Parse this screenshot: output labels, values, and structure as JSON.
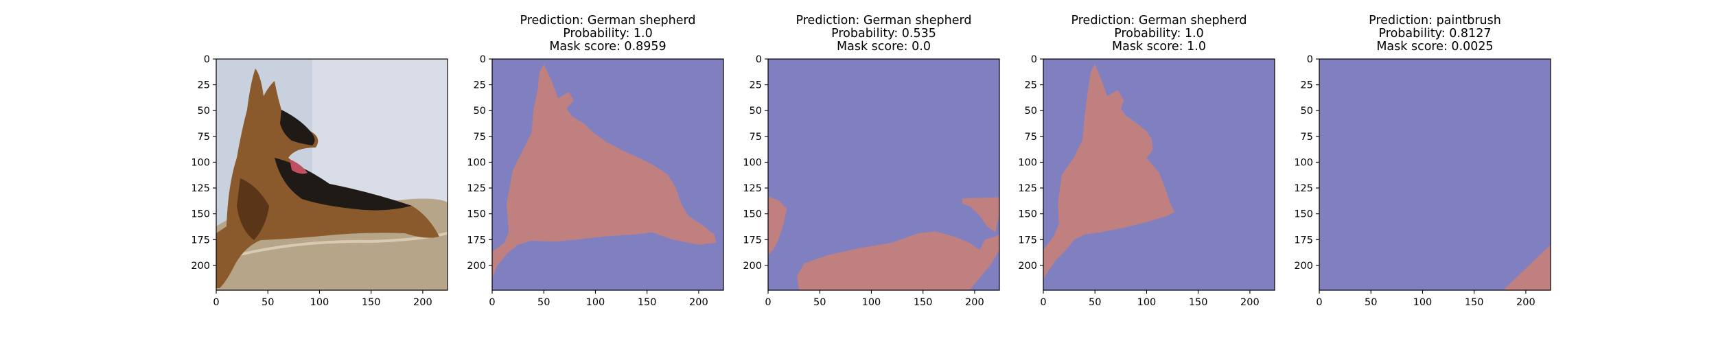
{
  "chart_data": [
    {
      "type": "image",
      "panel": "photo",
      "content": "photograph of a German shepherd dog lying on a cushion",
      "title_lines": [],
      "xlim": [
        0,
        224
      ],
      "ylim": [
        224,
        0
      ],
      "xticks": [
        0,
        50,
        100,
        150,
        200
      ],
      "yticks": [
        0,
        25,
        50,
        75,
        100,
        125,
        150,
        175,
        200
      ]
    },
    {
      "type": "heatmap",
      "panel": "mask",
      "title_lines": [
        "Prediction: German shepherd",
        "Probability: 1.0",
        "Mask score: 0.8959"
      ],
      "prediction": "German shepherd",
      "probability": 1.0,
      "mask_score": 0.8959,
      "xlim": [
        0,
        224
      ],
      "ylim": [
        224,
        0
      ],
      "xticks": [
        0,
        50,
        100,
        150,
        200
      ],
      "yticks": [
        0,
        25,
        50,
        75,
        100,
        125,
        150,
        175,
        200
      ],
      "mask_region": "dog silhouette",
      "mask_polygon": [
        [
          50,
          5
        ],
        [
          57,
          20
        ],
        [
          64,
          38
        ],
        [
          74,
          32
        ],
        [
          79,
          40
        ],
        [
          72,
          48
        ],
        [
          78,
          56
        ],
        [
          88,
          62
        ],
        [
          99,
          72
        ],
        [
          110,
          80
        ],
        [
          125,
          88
        ],
        [
          138,
          94
        ],
        [
          155,
          102
        ],
        [
          170,
          112
        ],
        [
          178,
          125
        ],
        [
          183,
          140
        ],
        [
          190,
          152
        ],
        [
          205,
          162
        ],
        [
          215,
          170
        ],
        [
          217,
          178
        ],
        [
          200,
          180
        ],
        [
          175,
          175
        ],
        [
          155,
          168
        ],
        [
          138,
          170
        ],
        [
          108,
          172
        ],
        [
          82,
          175
        ],
        [
          60,
          177
        ],
        [
          38,
          176
        ],
        [
          25,
          180
        ],
        [
          15,
          188
        ],
        [
          5,
          200
        ],
        [
          0,
          213
        ],
        [
          0,
          187
        ],
        [
          12,
          178
        ],
        [
          16,
          168
        ],
        [
          14,
          140
        ],
        [
          20,
          108
        ],
        [
          30,
          88
        ],
        [
          38,
          72
        ],
        [
          40,
          50
        ],
        [
          44,
          30
        ],
        [
          46,
          12
        ]
      ]
    },
    {
      "type": "heatmap",
      "panel": "mask",
      "title_lines": [
        "Prediction: German shepherd",
        "Probability: 0.535",
        "Mask score: 0.0"
      ],
      "prediction": "German shepherd",
      "probability": 0.535,
      "mask_score": 0.0,
      "xlim": [
        0,
        224
      ],
      "ylim": [
        224,
        0
      ],
      "xticks": [
        0,
        50,
        100,
        150,
        200
      ],
      "yticks": [
        0,
        25,
        50,
        75,
        100,
        125,
        150,
        175,
        200
      ],
      "mask_region": "cushion and border fragments",
      "mask_polygon_left": [
        [
          0,
          133
        ],
        [
          10,
          137
        ],
        [
          18,
          145
        ],
        [
          15,
          160
        ],
        [
          10,
          175
        ],
        [
          5,
          185
        ],
        [
          0,
          190
        ]
      ],
      "mask_polygon_bottom": [
        [
          30,
          224
        ],
        [
          28,
          210
        ],
        [
          35,
          198
        ],
        [
          58,
          190
        ],
        [
          90,
          183
        ],
        [
          120,
          178
        ],
        [
          145,
          169
        ],
        [
          162,
          167
        ],
        [
          180,
          172
        ],
        [
          195,
          178
        ],
        [
          205,
          185
        ],
        [
          210,
          175
        ],
        [
          220,
          172
        ],
        [
          224,
          170
        ],
        [
          224,
          185
        ],
        [
          215,
          200
        ],
        [
          205,
          212
        ],
        [
          195,
          224
        ]
      ],
      "mask_polygon_right": [
        [
          188,
          135
        ],
        [
          224,
          134
        ],
        [
          224,
          150
        ],
        [
          220,
          168
        ],
        [
          212,
          162
        ],
        [
          205,
          152
        ],
        [
          196,
          143
        ],
        [
          188,
          140
        ]
      ]
    },
    {
      "type": "heatmap",
      "panel": "mask",
      "title_lines": [
        "Prediction: German shepherd",
        "Probability: 1.0",
        "Mask score: 1.0"
      ],
      "prediction": "German shepherd",
      "probability": 1.0,
      "mask_score": 1.0,
      "xlim": [
        0,
        224
      ],
      "ylim": [
        224,
        0
      ],
      "xticks": [
        0,
        50,
        100,
        150,
        200
      ],
      "yticks": [
        0,
        25,
        50,
        75,
        100,
        125,
        150,
        175,
        200
      ],
      "mask_region": "dog head and upper body",
      "mask_polygon": [
        [
          50,
          5
        ],
        [
          56,
          20
        ],
        [
          62,
          36
        ],
        [
          72,
          30
        ],
        [
          78,
          40
        ],
        [
          75,
          48
        ],
        [
          80,
          55
        ],
        [
          90,
          62
        ],
        [
          100,
          70
        ],
        [
          105,
          78
        ],
        [
          106,
          88
        ],
        [
          100,
          96
        ],
        [
          112,
          110
        ],
        [
          118,
          125
        ],
        [
          123,
          140
        ],
        [
          127,
          148
        ],
        [
          120,
          152
        ],
        [
          100,
          158
        ],
        [
          80,
          163
        ],
        [
          55,
          168
        ],
        [
          40,
          170
        ],
        [
          30,
          175
        ],
        [
          22,
          185
        ],
        [
          12,
          195
        ],
        [
          5,
          205
        ],
        [
          0,
          213
        ],
        [
          0,
          185
        ],
        [
          10,
          172
        ],
        [
          15,
          160
        ],
        [
          14,
          140
        ],
        [
          18,
          112
        ],
        [
          30,
          95
        ],
        [
          38,
          78
        ],
        [
          40,
          55
        ],
        [
          43,
          32
        ],
        [
          46,
          12
        ]
      ]
    },
    {
      "type": "heatmap",
      "panel": "mask",
      "title_lines": [
        "Prediction: paintbrush",
        "Probability: 0.8127",
        "Mask score: 0.0025"
      ],
      "prediction": "paintbrush",
      "probability": 0.8127,
      "mask_score": 0.0025,
      "xlim": [
        0,
        224
      ],
      "ylim": [
        224,
        0
      ],
      "xticks": [
        0,
        50,
        100,
        150,
        200
      ],
      "yticks": [
        0,
        25,
        50,
        75,
        100,
        125,
        150,
        175,
        200
      ],
      "mask_region": "bottom-right corner",
      "mask_polygon": [
        [
          178,
          224
        ],
        [
          224,
          180
        ],
        [
          224,
          224
        ]
      ]
    }
  ],
  "colors": {
    "background_class": "#8080c0",
    "mask_class": "#c08080",
    "photo_wall": "#d8dde8",
    "photo_cushion": "#b7a58a",
    "photo_fur": "#8a5a2c",
    "photo_dark": "#1f1a16"
  }
}
